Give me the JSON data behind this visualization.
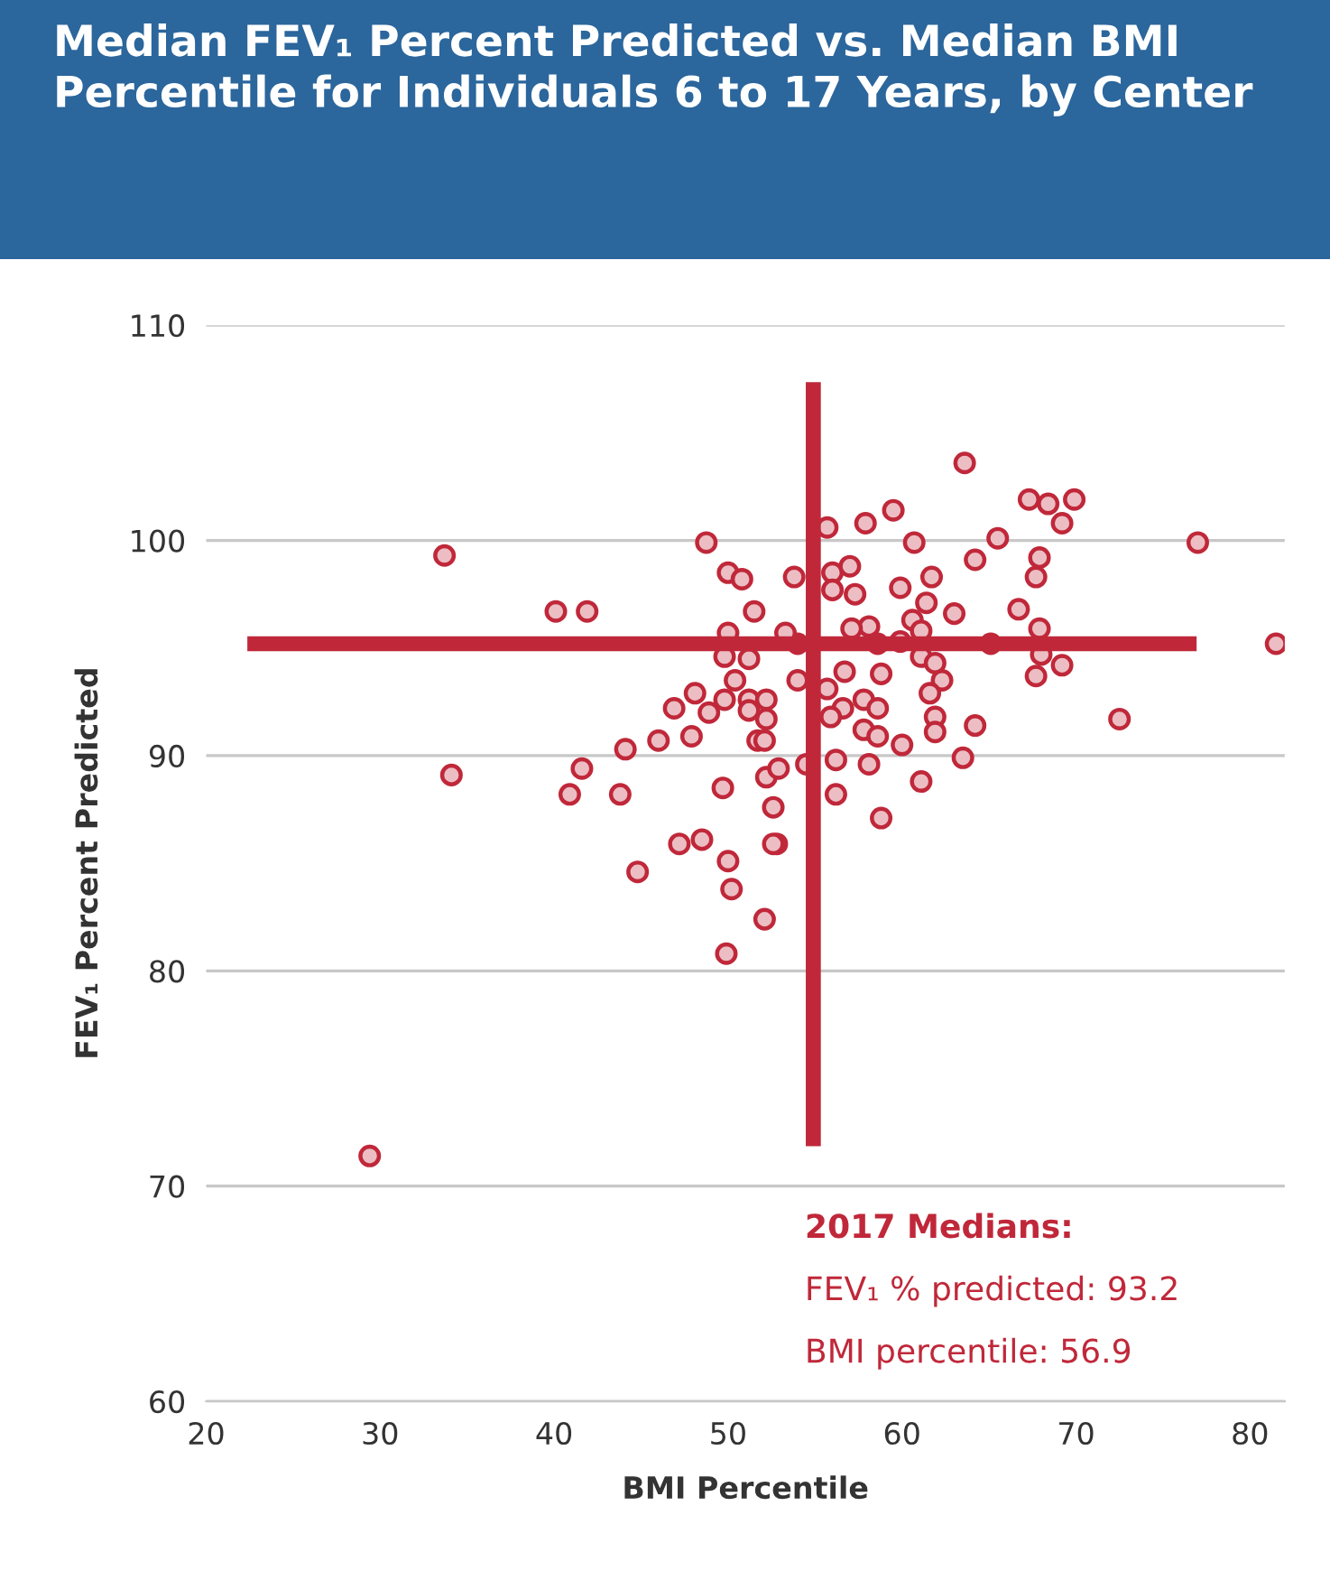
{
  "chart_data": {
    "type": "scatter",
    "title": "Median FEV₁ Percent Predicted vs. Median BMI Percentile for Individuals 6 to 17 Years, by Center",
    "xlabel": "BMI Percentile",
    "ylabel": "FEV₁ Percent Predicted",
    "series": [
      {
        "color": "#c0283a",
        "marker": "circle",
        "x": [
          33.7,
          40.1,
          41.9,
          34.1,
          48.75,
          50.0,
          50.8,
          51.5,
          46.9,
          48.1,
          48.9,
          47.9,
          46.0,
          44.1,
          41.6,
          40.9,
          43.8,
          49.7,
          47.2,
          48.5,
          50.0,
          44.8,
          50.0,
          49.8,
          51.2,
          50.4,
          49.8,
          51.2,
          51.7,
          50.2,
          52.8,
          52.1,
          49.9,
          29.4,
          63.6,
          67.3,
          68.4,
          69.9,
          69.2,
          77.0,
          81.5,
          72.5,
          55.7,
          57.9,
          59.5,
          60.7,
          65.5,
          64.2,
          67.9,
          67.7,
          53.8,
          56.0,
          57.0,
          56.0,
          57.3,
          59.9,
          61.7,
          61.4,
          63.0,
          66.7,
          58.1,
          57.1,
          60.6,
          61.1,
          59.9,
          58.6,
          65.1,
          67.9,
          68.0,
          67.7,
          69.2,
          61.1,
          61.9,
          54.0,
          56.7,
          55.7,
          58.8,
          57.8,
          56.6,
          58.6,
          62.3,
          61.6,
          55.9,
          57.8,
          58.6,
          60.0,
          61.9,
          61.9,
          64.2,
          56.2,
          58.1,
          63.5,
          61.1,
          56.2,
          58.8,
          52.6,
          52.6,
          52.2,
          52.9,
          52.1,
          52.2,
          52.2,
          51.2,
          54.5,
          54.0,
          53.3
        ],
        "values": [
          99.3,
          96.7,
          96.7,
          89.1,
          99.9,
          98.5,
          98.2,
          96.7,
          92.2,
          92.9,
          92.0,
          90.9,
          90.7,
          90.3,
          89.4,
          88.2,
          88.2,
          88.5,
          85.9,
          86.1,
          85.1,
          84.6,
          95.7,
          94.6,
          94.5,
          93.5,
          92.6,
          92.6,
          90.7,
          83.8,
          85.9,
          82.4,
          80.8,
          71.4,
          103.6,
          101.9,
          101.7,
          101.9,
          100.8,
          99.9,
          95.2,
          91.7,
          100.6,
          100.8,
          101.4,
          99.9,
          100.1,
          99.1,
          99.2,
          98.3,
          98.3,
          98.5,
          98.8,
          97.7,
          97.5,
          97.8,
          98.3,
          97.1,
          96.6,
          96.8,
          96.0,
          95.9,
          96.3,
          95.8,
          95.3,
          95.2,
          95.2,
          95.9,
          94.7,
          93.7,
          94.2,
          94.6,
          94.3,
          93.5,
          93.9,
          93.1,
          93.8,
          92.6,
          92.2,
          92.2,
          93.5,
          92.9,
          91.8,
          91.2,
          90.9,
          90.5,
          91.8,
          91.1,
          91.4,
          89.8,
          89.6,
          89.9,
          88.8,
          88.2,
          87.1,
          87.6,
          85.9,
          89.0,
          89.4,
          90.7,
          92.6,
          91.7,
          92.1,
          89.6,
          95.2,
          95.7
        ]
      },
      {
        "type": "line",
        "color": "#c0283a",
        "x": [
          22.8,
          76.5
        ],
        "values": [
          95.2,
          95.2
        ]
      },
      {
        "type": "line",
        "color": "#c0283a",
        "x": [
          54.9,
          54.9
        ],
        "values": [
          72.2,
          107.0
        ]
      }
    ],
    "xlim": [
      20,
      82
    ],
    "ylim": [
      60,
      110
    ],
    "xticks": [
      20,
      30,
      40,
      50,
      60,
      70,
      80
    ],
    "yticks": [
      60,
      70,
      80,
      90,
      100,
      110
    ],
    "grid": "y",
    "annotations": [
      "2017 Medians:",
      "FEV₁ % predicted: 93.2",
      "BMI percentile: 56.9"
    ]
  }
}
